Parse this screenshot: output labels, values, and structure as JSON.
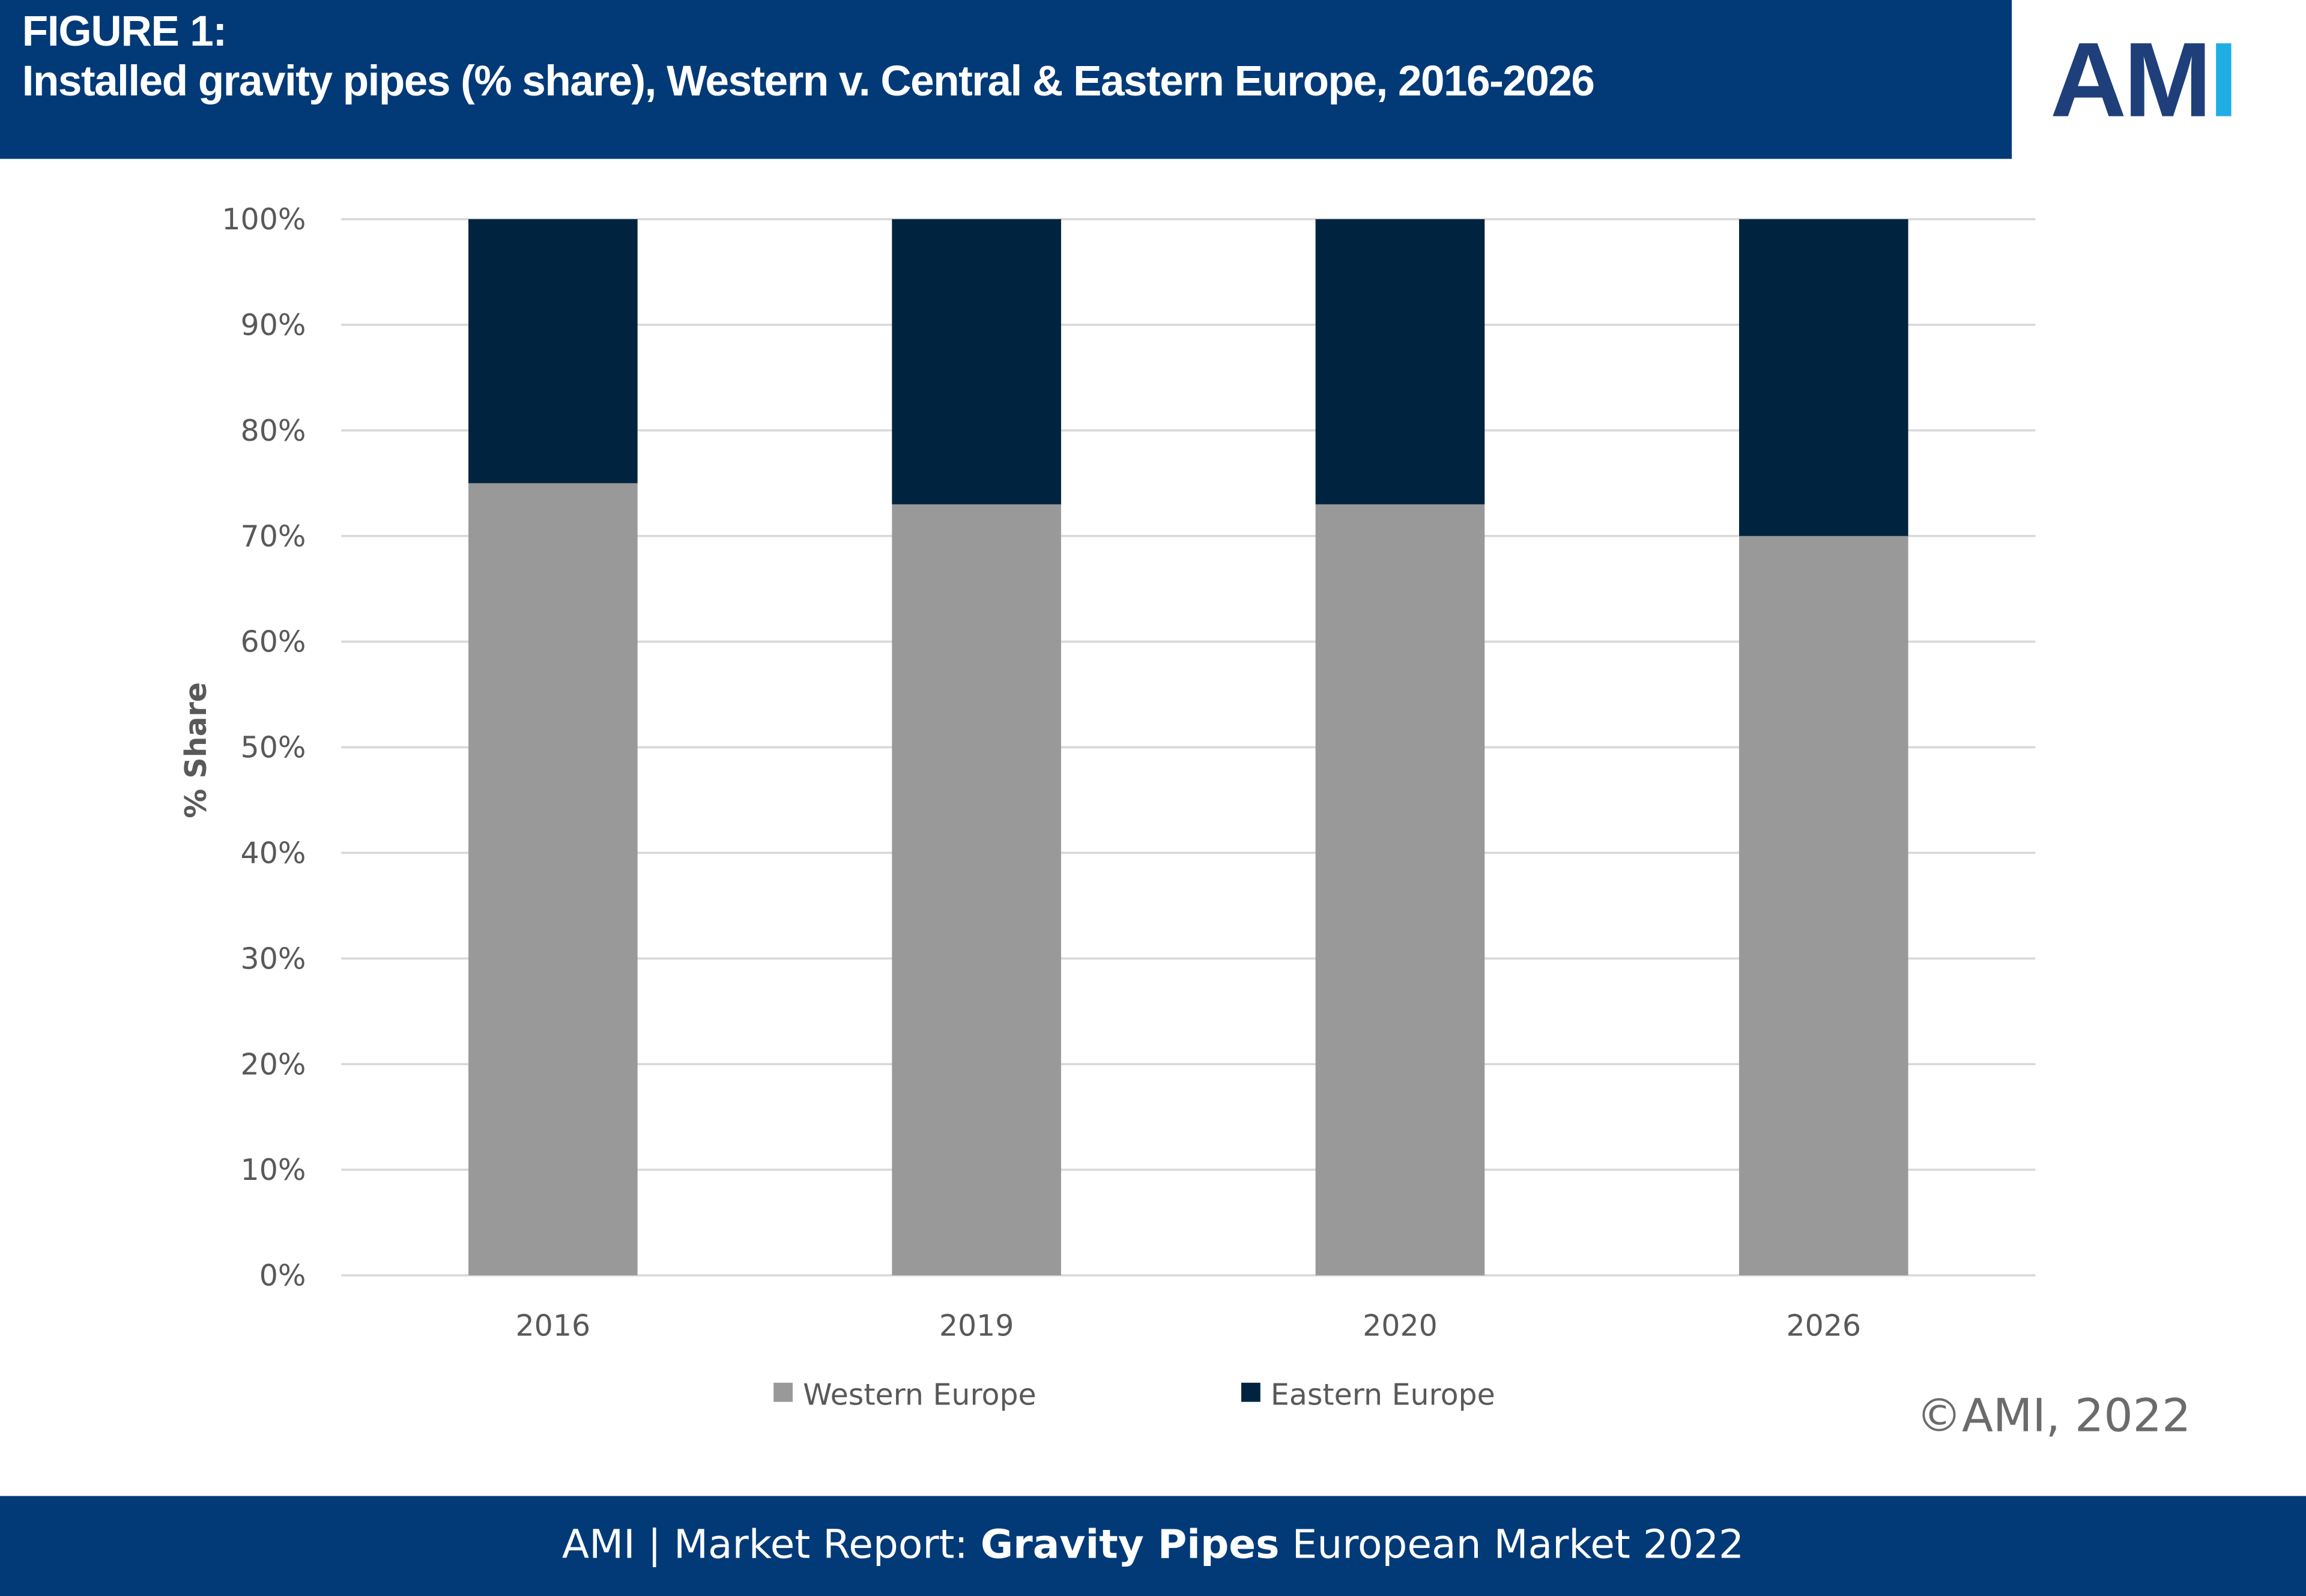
{
  "header": {
    "figure_label": "FIGURE 1:",
    "title": "Installed gravity pipes (% share), Western v. Central & Eastern Europe, 2016-2026"
  },
  "logo": {
    "text_dark": "AM",
    "text_light": "I",
    "color_dark": "#1f3f7a",
    "color_light": "#1eaee3"
  },
  "copyright": "©AMI, 2022",
  "footer": {
    "prefix": "AMI | Market Report:",
    "bold": "Gravity Pipes",
    "suffix": "European Market 2022"
  },
  "colors": {
    "header_bg": "#023a78",
    "western": "#999999",
    "eastern": "#00243f",
    "grid": "#d9d9d9"
  },
  "chart_data": {
    "type": "bar",
    "stacked": true,
    "title": "Installed gravity pipes (% share), Western v. Central & Eastern Europe, 2016-2026",
    "xlabel": "",
    "ylabel": "% Share",
    "ylim": [
      0,
      100
    ],
    "yticks": [
      0,
      10,
      20,
      30,
      40,
      50,
      60,
      70,
      80,
      90,
      100
    ],
    "ytick_labels": [
      "0%",
      "10%",
      "20%",
      "30%",
      "40%",
      "50%",
      "60%",
      "70%",
      "80%",
      "90%",
      "100%"
    ],
    "categories": [
      "2016",
      "2019",
      "2020",
      "2026"
    ],
    "series": [
      {
        "name": "Western Europe",
        "color": "#999999",
        "values": [
          75,
          73,
          73,
          70
        ]
      },
      {
        "name": "Eastern Europe",
        "color": "#00243f",
        "values": [
          25,
          27,
          27,
          30
        ]
      }
    ],
    "grid": true,
    "legend": "bottom"
  }
}
